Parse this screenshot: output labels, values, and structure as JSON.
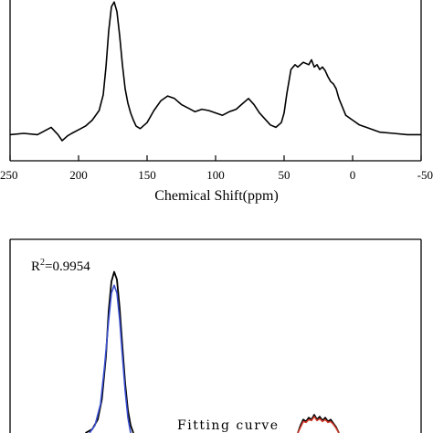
{
  "chart_data": [
    {
      "type": "line",
      "xlabel": "Chemical Shift(ppm)",
      "ylabel": "",
      "x_reversed": true,
      "xlim": [
        250,
        -50
      ],
      "xticks": [
        "250",
        "200",
        "150",
        "100",
        "50",
        "0",
        "-50"
      ],
      "xtick_values": [
        250,
        200,
        150,
        100,
        50,
        0,
        -50
      ],
      "grid": false,
      "series": [
        {
          "color": "#000000",
          "x": [
            250,
            240,
            230,
            225,
            220,
            215,
            212,
            208,
            205,
            200,
            195,
            190,
            185,
            182,
            180,
            178,
            176,
            174,
            172,
            170,
            168,
            166,
            164,
            162,
            160,
            158,
            155,
            150,
            145,
            140,
            135,
            130,
            125,
            120,
            115,
            110,
            105,
            100,
            95,
            90,
            85,
            80,
            76,
            72,
            68,
            64,
            60,
            56,
            52,
            50,
            48,
            45,
            42,
            40,
            36,
            32,
            30,
            28,
            26,
            24,
            22,
            20,
            18,
            16,
            14,
            12,
            10,
            5,
            0,
            -5,
            -10,
            -20,
            -30,
            -40,
            -50
          ],
          "y": [
            2,
            3,
            2,
            5,
            8,
            2,
            -3,
            1,
            3,
            6,
            9,
            14,
            22,
            35,
            58,
            88,
            108,
            112,
            104,
            84,
            60,
            40,
            28,
            20,
            14,
            9,
            7,
            12,
            22,
            30,
            34,
            32,
            27,
            24,
            21,
            23,
            22,
            20,
            18,
            21,
            23,
            28,
            32,
            27,
            20,
            15,
            10,
            8,
            12,
            20,
            36,
            56,
            60,
            58,
            62,
            60,
            64,
            58,
            60,
            56,
            58,
            55,
            50,
            46,
            44,
            40,
            32,
            18,
            14,
            10,
            8,
            4,
            3,
            2,
            2
          ]
        }
      ]
    },
    {
      "type": "line",
      "annotations": [
        "R²=0.9954",
        "Fitting curve"
      ],
      "r2_label": "R",
      "r2_sup": "2",
      "r2_value": "=0.9954",
      "fit_label": "Fitting curve",
      "x_reversed": true,
      "xlim": [
        250,
        -50
      ],
      "series": [
        {
          "color": "#000000",
          "x": [
            195,
            190,
            186,
            183,
            180,
            178,
            176,
            174,
            172,
            170,
            168,
            166,
            164,
            162,
            160
          ],
          "y": [
            0,
            4,
            14,
            35,
            80,
            128,
            158,
            168,
            160,
            130,
            90,
            52,
            24,
            8,
            0
          ]
        },
        {
          "color": "#3a4fd0",
          "x": [
            192,
            188,
            184,
            181,
            178,
            176,
            174,
            172,
            170,
            168,
            166,
            164,
            162
          ],
          "y": [
            0,
            8,
            30,
            70,
            118,
            146,
            154,
            146,
            118,
            80,
            44,
            16,
            0
          ]
        },
        {
          "color": "#000000",
          "x": [
            40,
            38,
            36,
            34,
            32,
            30,
            28,
            26,
            24,
            22,
            20,
            18,
            16,
            14,
            12,
            10
          ],
          "y": [
            0,
            8,
            14,
            12,
            16,
            14,
            19,
            14,
            17,
            13,
            16,
            12,
            14,
            10,
            6,
            0
          ]
        },
        {
          "color": "#d03a2a",
          "x": [
            40,
            38,
            36,
            34,
            32,
            30,
            28,
            26,
            24,
            22,
            20,
            18,
            16,
            14,
            12,
            10
          ],
          "y": [
            0,
            6,
            12,
            11,
            14,
            13,
            17,
            13,
            15,
            12,
            14,
            11,
            12,
            9,
            5,
            0
          ]
        }
      ]
    }
  ]
}
